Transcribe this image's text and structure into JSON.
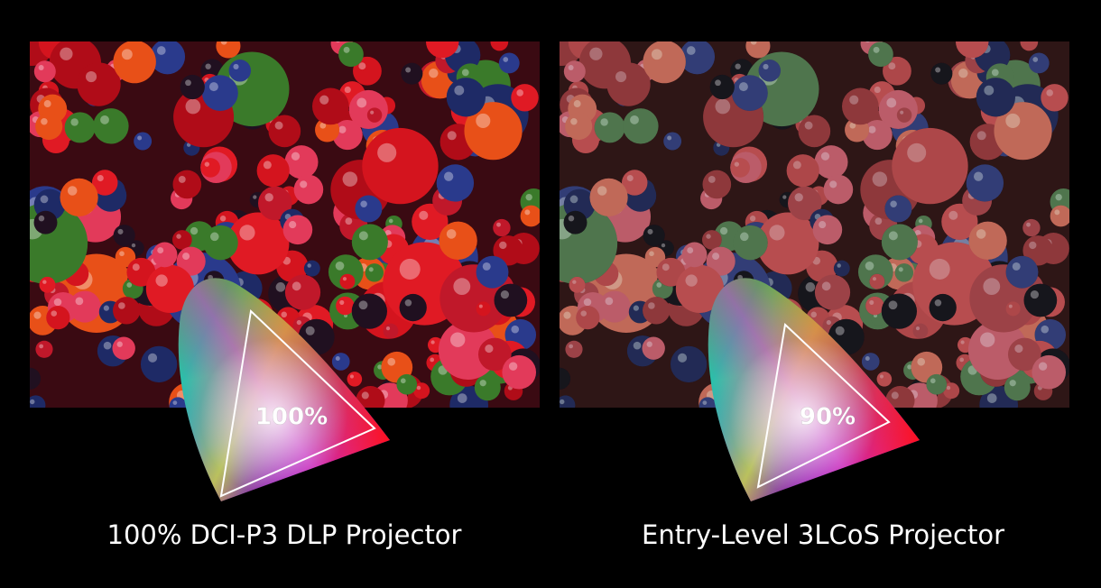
{
  "panels": [
    {
      "gamut": "100%",
      "caption": "100% DCI-P3 DLP Projector"
    },
    {
      "gamut": "90%",
      "caption": "Entry-Level 3LCoS Projector"
    }
  ]
}
